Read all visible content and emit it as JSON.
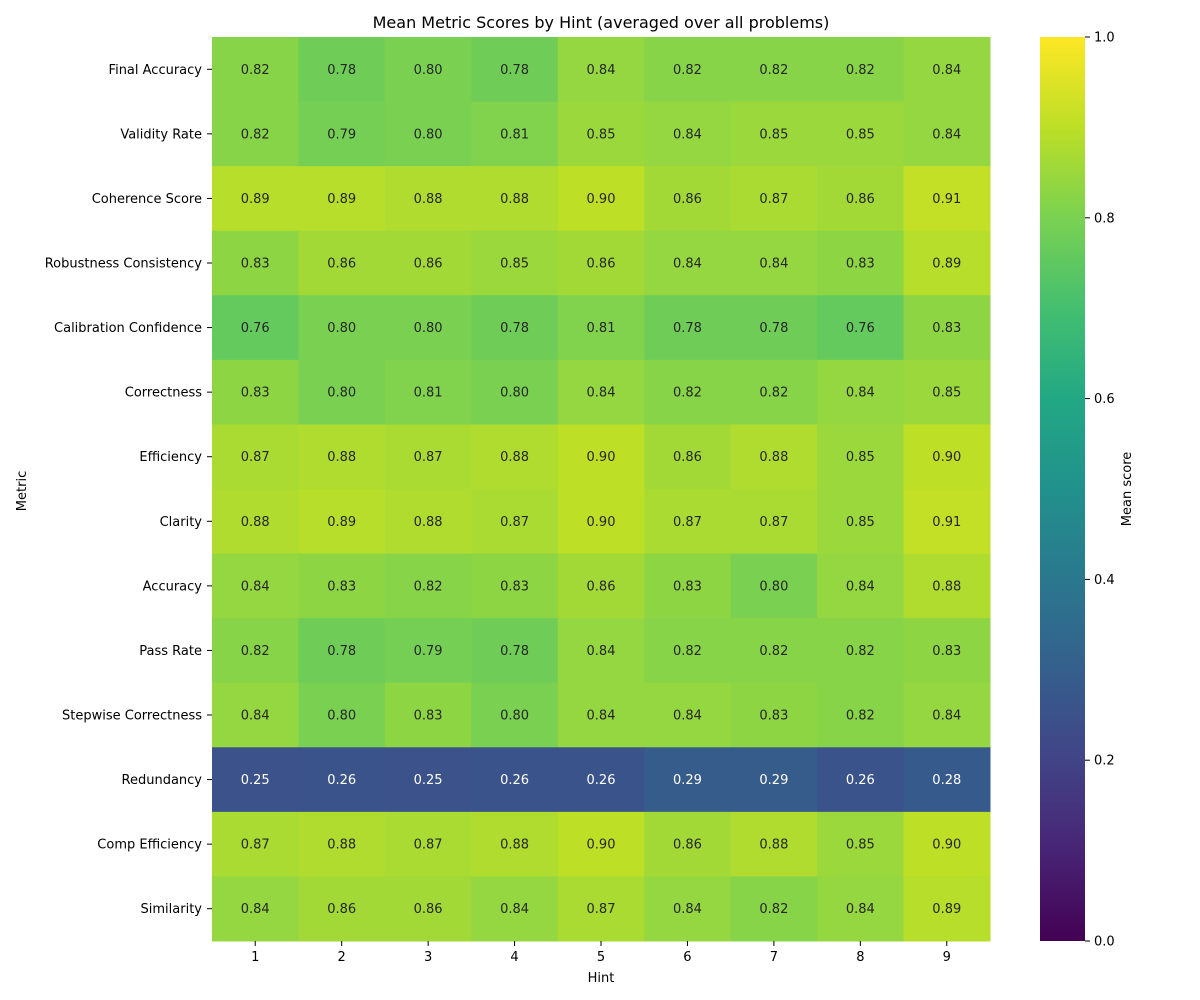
{
  "chart_data": {
    "type": "heatmap",
    "title": "Mean Metric Scores by Hint (averaged over all problems)",
    "xlabel": "Hint",
    "ylabel": "Metric",
    "colorbar_label": "Mean score",
    "colormap": "viridis",
    "vmin": 0.0,
    "vmax": 1.0,
    "colorbar_ticks": [
      "0.0",
      "0.2",
      "0.4",
      "0.6",
      "0.8",
      "1.0"
    ],
    "x_categories": [
      "1",
      "2",
      "3",
      "4",
      "5",
      "6",
      "7",
      "8",
      "9"
    ],
    "y_categories": [
      "Final Accuracy",
      "Validity Rate",
      "Coherence Score",
      "Robustness Consistency",
      "Calibration Confidence",
      "Correctness",
      "Efficiency",
      "Clarity",
      "Accuracy",
      "Pass Rate",
      "Stepwise Correctness",
      "Redundancy",
      "Comp Efficiency",
      "Similarity"
    ],
    "values": [
      [
        0.82,
        0.78,
        0.8,
        0.78,
        0.84,
        0.82,
        0.82,
        0.82,
        0.84
      ],
      [
        0.82,
        0.79,
        0.8,
        0.81,
        0.85,
        0.84,
        0.85,
        0.85,
        0.84
      ],
      [
        0.89,
        0.89,
        0.88,
        0.88,
        0.9,
        0.86,
        0.87,
        0.86,
        0.91
      ],
      [
        0.83,
        0.86,
        0.86,
        0.85,
        0.86,
        0.84,
        0.84,
        0.83,
        0.89
      ],
      [
        0.76,
        0.8,
        0.8,
        0.78,
        0.81,
        0.78,
        0.78,
        0.76,
        0.83
      ],
      [
        0.83,
        0.8,
        0.81,
        0.8,
        0.84,
        0.82,
        0.82,
        0.84,
        0.85
      ],
      [
        0.87,
        0.88,
        0.87,
        0.88,
        0.9,
        0.86,
        0.88,
        0.85,
        0.9
      ],
      [
        0.88,
        0.89,
        0.88,
        0.87,
        0.9,
        0.87,
        0.87,
        0.85,
        0.91
      ],
      [
        0.84,
        0.83,
        0.82,
        0.83,
        0.86,
        0.83,
        0.8,
        0.84,
        0.88
      ],
      [
        0.82,
        0.78,
        0.79,
        0.78,
        0.84,
        0.82,
        0.82,
        0.82,
        0.83
      ],
      [
        0.84,
        0.8,
        0.83,
        0.8,
        0.84,
        0.84,
        0.83,
        0.82,
        0.84
      ],
      [
        0.25,
        0.26,
        0.25,
        0.26,
        0.26,
        0.29,
        0.29,
        0.26,
        0.28
      ],
      [
        0.87,
        0.88,
        0.87,
        0.88,
        0.9,
        0.86,
        0.88,
        0.85,
        0.9
      ],
      [
        0.84,
        0.86,
        0.86,
        0.84,
        0.87,
        0.84,
        0.82,
        0.84,
        0.89
      ]
    ]
  }
}
